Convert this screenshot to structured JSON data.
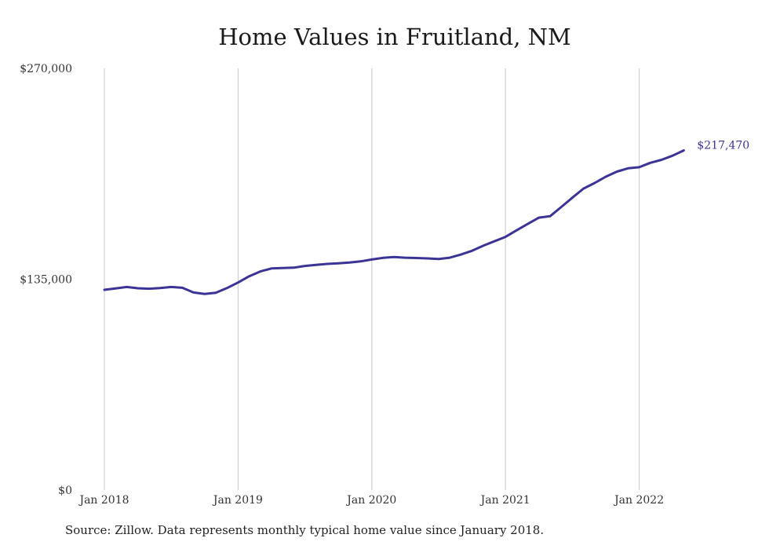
{
  "chart_data": {
    "type": "line",
    "title": "Home Values in Fruitland, NM",
    "xlabel": "",
    "ylabel": "",
    "ylim": [
      0,
      270000
    ],
    "yticks": [
      {
        "value": 0,
        "label": "$0"
      },
      {
        "value": 135000,
        "label": "$135,000"
      },
      {
        "value": 270000,
        "label": "$270,000"
      }
    ],
    "xlim": [
      "2018-01",
      "2022-05"
    ],
    "xticks": [
      {
        "value": "2018-01",
        "label": "Jan 2018"
      },
      {
        "value": "2019-01",
        "label": "Jan 2019"
      },
      {
        "value": "2020-01",
        "label": "Jan 2020"
      },
      {
        "value": "2021-01",
        "label": "Jan 2021"
      },
      {
        "value": "2022-01",
        "label": "Jan 2022"
      }
    ],
    "grid": "vertical",
    "line_color": "#3b3495",
    "end_label": "$217,470",
    "x": [
      "2018-01",
      "2018-02",
      "2018-03",
      "2018-04",
      "2018-05",
      "2018-06",
      "2018-07",
      "2018-08",
      "2018-09",
      "2018-10",
      "2018-11",
      "2018-12",
      "2019-01",
      "2019-02",
      "2019-03",
      "2019-04",
      "2019-05",
      "2019-06",
      "2019-07",
      "2019-08",
      "2019-09",
      "2019-10",
      "2019-11",
      "2019-12",
      "2020-01",
      "2020-02",
      "2020-03",
      "2020-04",
      "2020-05",
      "2020-06",
      "2020-07",
      "2020-08",
      "2020-09",
      "2020-10",
      "2020-11",
      "2020-12",
      "2021-01",
      "2021-02",
      "2021-03",
      "2021-04",
      "2021-05",
      "2021-06",
      "2021-07",
      "2021-08",
      "2021-09",
      "2021-10",
      "2021-11",
      "2021-12",
      "2022-01",
      "2022-02",
      "2022-03",
      "2022-04",
      "2022-05"
    ],
    "values": [
      128200,
      129100,
      130000,
      129200,
      128900,
      129300,
      130000,
      129500,
      126500,
      125600,
      126300,
      129300,
      132900,
      136900,
      140000,
      141900,
      142200,
      142400,
      143500,
      144200,
      144800,
      145200,
      145700,
      146400,
      147600,
      148700,
      149200,
      148800,
      148600,
      148300,
      147900,
      148800,
      150800,
      153200,
      156400,
      159300,
      162100,
      166300,
      170400,
      174400,
      175300,
      181200,
      187200,
      193000,
      196600,
      200600,
      203900,
      206000,
      206700,
      209500,
      211400,
      214100,
      217470
    ]
  },
  "source_note": "Source: Zillow. Data represents monthly typical home value since January 2018."
}
